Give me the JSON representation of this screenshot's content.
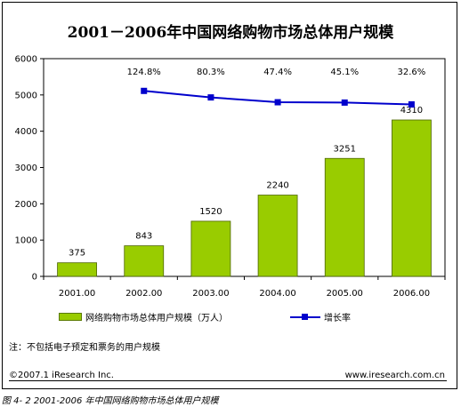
{
  "chart_data": {
    "type": "bar",
    "title": "2001－2006年中国网络购物市场总体用户规模",
    "categories": [
      "2001.00",
      "2002.00",
      "2003.00",
      "2004.00",
      "2005.00",
      "2006.00"
    ],
    "series": [
      {
        "name": "网络购物市场总体用户规模（万人）",
        "type": "bar",
        "color": "#99cc00",
        "values": [
          375,
          843,
          1520,
          2240,
          3251,
          4310
        ],
        "labels": [
          "375",
          "843",
          "1520",
          "2240",
          "3251",
          "4310"
        ]
      },
      {
        "name": "增长率",
        "type": "line",
        "color": "#0000cc",
        "values": [
          null,
          124.8,
          80.3,
          47.4,
          45.1,
          32.6
        ],
        "labels": [
          "",
          "124.8%",
          "80.3%",
          "47.4%",
          "45.1%",
          "32.6%"
        ]
      }
    ],
    "ylim": [
      0,
      6000
    ],
    "yticks": [
      "0",
      "1000",
      "2000",
      "3000",
      "4000",
      "5000",
      "6000"
    ],
    "grid": false,
    "legend": "bottom"
  },
  "note": "注：不包括电子预定和票务的用户规模",
  "copyright": "©2007.1 iResearch Inc.",
  "website": "www.iresearch.com.cn",
  "caption": "图 4- 2 2001-2006 年中国网络购物市场总体用户规模"
}
